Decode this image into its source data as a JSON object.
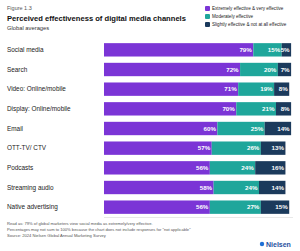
{
  "chart_data": {
    "type": "bar",
    "orientation": "horizontal",
    "stacked": true,
    "data_labels": true,
    "tick_labels": "y",
    "grid": false,
    "legend": "top-right",
    "figure_label": "Figure 1.3",
    "title": "Perceived effectiveness of digital media channels",
    "subtitle": "Global averages",
    "categories": [
      "Social media",
      "Search",
      "Video: Online/mobile",
      "Display: Online/mobile",
      "Email",
      "OTT-TV/ CTV",
      "Podcasts",
      "Streaming audio",
      "Native advertising"
    ],
    "xlim": [
      0,
      100
    ],
    "series": [
      {
        "name": "Extremely effective & very effective",
        "color": "#7b35d6",
        "values": [
          79,
          72,
          71,
          70,
          60,
          57,
          56,
          58,
          56
        ],
        "value_labels": [
          "79%",
          "72%",
          "71%",
          "70%",
          "60%",
          "57%",
          "56%",
          "58%",
          "56%"
        ]
      },
      {
        "name": "Moderately effective",
        "color": "#1fa69b",
        "values": [
          15,
          20,
          19,
          21,
          25,
          26,
          24,
          24,
          27
        ],
        "value_labels": [
          "15%",
          "20%",
          "19%",
          "21%",
          "25%",
          "26%",
          "24%",
          "24%",
          "27%"
        ]
      },
      {
        "name": "Slightly effective & not at all effective",
        "color": "#1b3a5c",
        "values": [
          5,
          7,
          8,
          8,
          14,
          13,
          16,
          14,
          15
        ],
        "value_labels": [
          "5%",
          "7%",
          "8%",
          "8%",
          "14%",
          "13%",
          "16%",
          "14%",
          "15%"
        ]
      }
    ],
    "notes": [
      "Read as: 79% of global marketers view social media as extremely/very effective.",
      "Percentages may not sum to 100% because the chart does not include responses for \"not applicable\"",
      "Source: 2024 Nielsen Global Annual Marketing Survey"
    ],
    "logo": "Nielsen"
  }
}
